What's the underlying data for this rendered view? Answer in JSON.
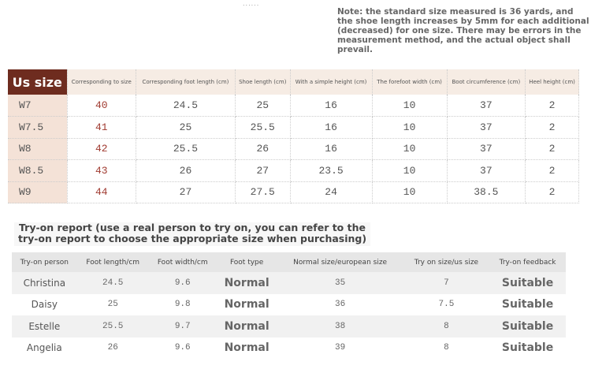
{
  "decor": "......",
  "note": "Note: the standard size measured is 36 yards, and the shoe length increases by 5mm for each additional (decreased) for one size. There may be errors in the measurement method, and the actual object shall prevail.",
  "size_table": {
    "headers": [
      "Us size",
      "Corresponding to size",
      "Corresponding foot length (cm)",
      "Shoe length (cm)",
      "With a simple height (cm)",
      "The forefoot width (cm)",
      "Boot circumference (cm)",
      "Heel height (cm)"
    ],
    "rows": [
      [
        "W7",
        "40",
        "24.5",
        "25",
        "16",
        "10",
        "37",
        "2"
      ],
      [
        "W7.5",
        "41",
        "25",
        "25.5",
        "16",
        "10",
        "37",
        "2"
      ],
      [
        "W8",
        "42",
        "25.5",
        "26",
        "16",
        "10",
        "37",
        "2"
      ],
      [
        "W8.5",
        "43",
        "26",
        "27",
        "23.5",
        "10",
        "37",
        "2"
      ],
      [
        "W9",
        "44",
        "27",
        "27.5",
        "24",
        "10",
        "38.5",
        "2"
      ]
    ]
  },
  "tryon": {
    "title": "Try-on report (use a real person to try on, you can refer to the try-on report to choose the appropriate size when purchasing)",
    "headers": [
      "Try-on person",
      "Foot length/cm",
      "Foot width/cm",
      "Foot type",
      "Normal size/european size",
      "Try on size/us size",
      "Try-on feedback"
    ],
    "rows": [
      [
        "Christina",
        "24.5",
        "9.6",
        "Normal",
        "35",
        "7",
        "Suitable"
      ],
      [
        "Daisy",
        "25",
        "9.8",
        "Normal",
        "36",
        "7.5",
        "Suitable"
      ],
      [
        "Estelle",
        "25.5",
        "9.7",
        "Normal",
        "38",
        "8",
        "Suitable"
      ],
      [
        "Angelia",
        "26",
        "9.6",
        "Normal",
        "39",
        "8",
        "Suitable"
      ]
    ]
  }
}
